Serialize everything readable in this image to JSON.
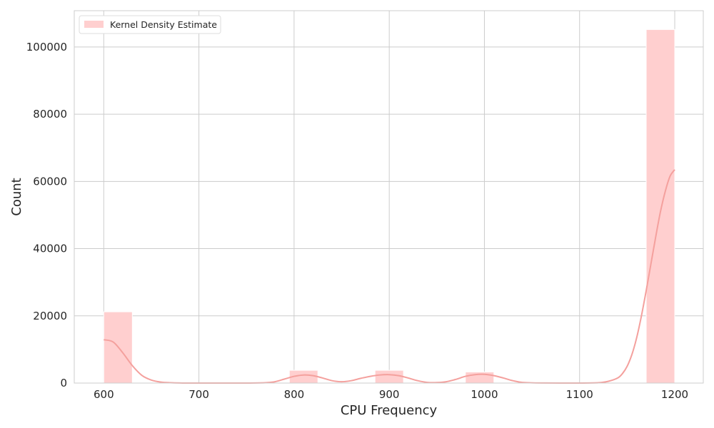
{
  "chart_data": {
    "type": "bar",
    "title": "",
    "xlabel": "CPU Frequency",
    "ylabel": "Count",
    "xlim": [
      569,
      1230
    ],
    "ylim": [
      0,
      110800
    ],
    "xticks": [
      600,
      700,
      800,
      900,
      1000,
      1100,
      1200
    ],
    "yticks": [
      0,
      20000,
      40000,
      60000,
      80000,
      100000
    ],
    "grid": true,
    "legend": {
      "placement": "top-left",
      "entries": [
        "Kernel Density Estimate"
      ]
    },
    "histogram": {
      "bin_width": 30,
      "bins": [
        {
          "x0": 600,
          "x1": 630,
          "count": 21200
        },
        {
          "x0": 795,
          "x1": 825,
          "count": 3800
        },
        {
          "x0": 885,
          "x1": 915,
          "count": 3800
        },
        {
          "x0": 980,
          "x1": 1010,
          "count": 3300
        },
        {
          "x0": 1170,
          "x1": 1200,
          "count": 105200
        }
      ]
    },
    "kde": {
      "name": "Kernel Density Estimate",
      "x": [
        600,
        610,
        620,
        630,
        640,
        650,
        660,
        670,
        680,
        700,
        750,
        770,
        780,
        790,
        800,
        810,
        820,
        830,
        840,
        850,
        860,
        870,
        880,
        890,
        900,
        910,
        920,
        930,
        940,
        950,
        960,
        970,
        980,
        990,
        1000,
        1010,
        1020,
        1030,
        1040,
        1060,
        1100,
        1120,
        1130,
        1140,
        1145,
        1150,
        1155,
        1160,
        1165,
        1170,
        1175,
        1180,
        1185,
        1190,
        1195,
        1200
      ],
      "y": [
        12900,
        12200,
        9000,
        5200,
        2300,
        900,
        300,
        100,
        20,
        0,
        0,
        100,
        400,
        1200,
        2000,
        2400,
        2200,
        1500,
        700,
        400,
        700,
        1400,
        2000,
        2400,
        2500,
        2200,
        1500,
        700,
        200,
        150,
        400,
        1100,
        2000,
        2500,
        2600,
        2200,
        1500,
        700,
        200,
        20,
        0,
        100,
        500,
        1500,
        2800,
        5000,
        8500,
        13500,
        20000,
        27500,
        35500,
        43500,
        51000,
        57000,
        61500,
        63500
      ]
    },
    "colors": {
      "bar": "#ffcfcf",
      "kde_line": "#f4a09d",
      "grid": "#cccccc",
      "axes_edge": "#cccccc"
    }
  }
}
